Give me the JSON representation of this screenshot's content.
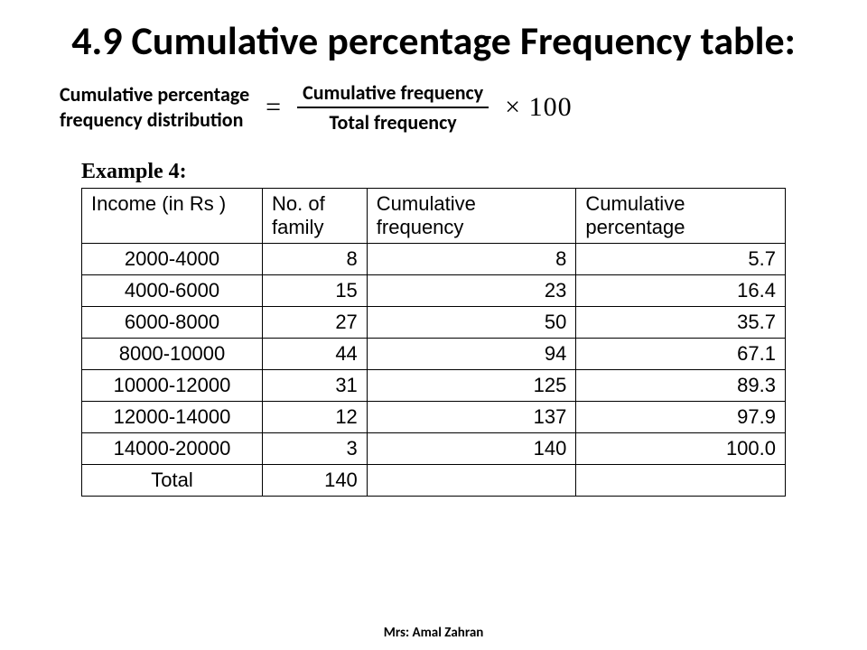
{
  "title": "4.9 Cumulative percentage Frequency table:",
  "formula": {
    "lhs_line1": "Cumulative percentage",
    "lhs_line2": "frequency distribution",
    "eq": "=",
    "numerator": "Cumulative frequency",
    "denominator": "Total frequency",
    "times": "×",
    "hundred": "100"
  },
  "example_label": "Example 4:",
  "table": {
    "columns": [
      {
        "label_line1": "Income (in Rs )",
        "label_line2": "",
        "class": "col-income",
        "align_header": "left",
        "align_body": "center"
      },
      {
        "label_line1": "No. of",
        "label_line2": "family",
        "class": "col-nof",
        "align_header": "left",
        "align_body": "right"
      },
      {
        "label_line1": "Cumulative",
        "label_line2": "frequency",
        "class": "col-cf",
        "align_header": "left",
        "align_body": "right"
      },
      {
        "label_line1": "Cumulative",
        "label_line2": "percentage",
        "class": "col-cp",
        "align_header": "left",
        "align_body": "right"
      }
    ],
    "rows": [
      [
        "2000-4000",
        "8",
        "8",
        "5.7"
      ],
      [
        "4000-6000",
        "15",
        "23",
        "16.4"
      ],
      [
        "6000-8000",
        "27",
        "50",
        "35.7"
      ],
      [
        "8000-10000",
        "44",
        "94",
        "67.1"
      ],
      [
        "10000-12000",
        "31",
        "125",
        "89.3"
      ],
      [
        "12000-14000",
        "12",
        "137",
        "97.9"
      ],
      [
        "14000-20000",
        "3",
        "140",
        "100.0"
      ],
      [
        "Total",
        "140",
        "",
        ""
      ]
    ],
    "header_fontsize": 22,
    "body_fontsize": 22,
    "border_color": "#000000",
    "background_color": "#ffffff"
  },
  "footer": "Mrs: Amal Zahran",
  "colors": {
    "text": "#000000",
    "background": "#ffffff"
  }
}
